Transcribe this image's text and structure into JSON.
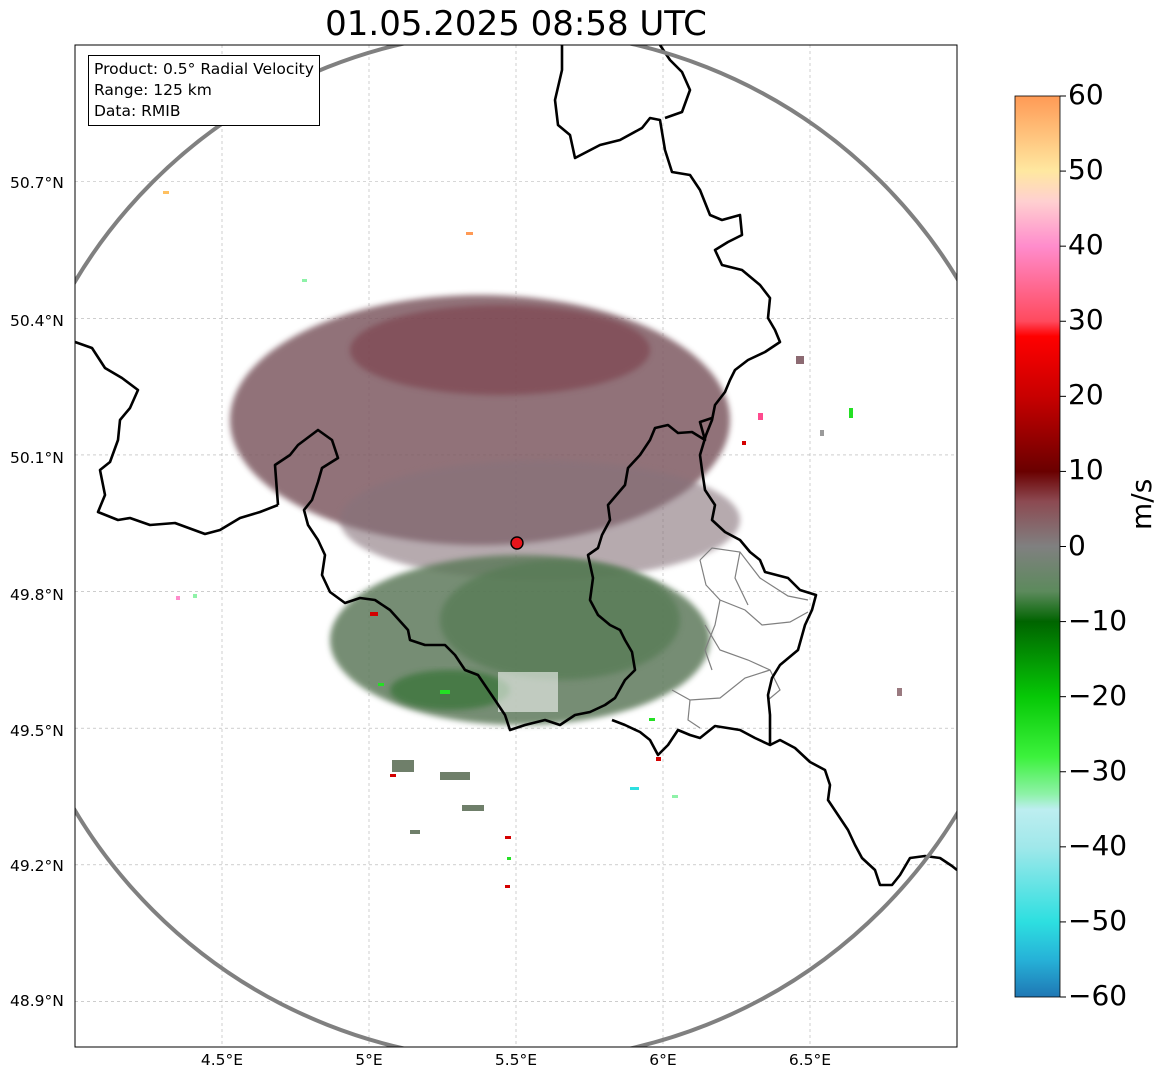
{
  "title": "01.05.2025 08:58 UTC",
  "info": {
    "product": "Product: 0.5° Radial Velocity",
    "range": "Range: 125 km",
    "data": "Data: RMIB"
  },
  "map": {
    "lon_range": [
      4.0,
      7.0
    ],
    "lat_range": [
      48.8,
      51.0
    ],
    "lon_ticks": [
      "4.5°E",
      "5°E",
      "5.5°E",
      "6°E",
      "6.5°E"
    ],
    "lat_ticks": [
      "50.7°N",
      "50.4°N",
      "50.1°N",
      "49.8°N",
      "49.5°N",
      "49.2°N",
      "48.9°N"
    ],
    "radar_site": {
      "lon": 5.51,
      "lat": 49.91
    },
    "range_km": 125,
    "range_ring_color": "#808080",
    "radar_marker_color": "#e8141b",
    "border_color": "#000000",
    "subregion_border_color": "#808080"
  },
  "colorbar": {
    "unit": "m/s",
    "min": -60,
    "max": 60,
    "ticks": [
      "60",
      "50",
      "40",
      "30",
      "20",
      "10",
      "0",
      "−10",
      "−20",
      "−30",
      "−40",
      "−50",
      "−60"
    ],
    "stops": [
      {
        "v": -60,
        "c": "#1f77b4"
      },
      {
        "v": -55,
        "c": "#26b2d8"
      },
      {
        "v": -50,
        "c": "#2ddfe0"
      },
      {
        "v": -40,
        "c": "#a0e8ea"
      },
      {
        "v": -35,
        "c": "#bdeef0"
      },
      {
        "v": -33,
        "c": "#8ef2a8"
      },
      {
        "v": -28,
        "c": "#3cf23c"
      },
      {
        "v": -20,
        "c": "#06c806"
      },
      {
        "v": -10,
        "c": "#006400"
      },
      {
        "v": -6,
        "c": "#5c8a5c"
      },
      {
        "v": 0,
        "c": "#808080"
      },
      {
        "v": 6,
        "c": "#8c4a52"
      },
      {
        "v": 10,
        "c": "#6a0000"
      },
      {
        "v": 20,
        "c": "#c80000"
      },
      {
        "v": 28,
        "c": "#ff0000"
      },
      {
        "v": 30,
        "c": "#ff4a5e"
      },
      {
        "v": 40,
        "c": "#ff8ccc"
      },
      {
        "v": 46,
        "c": "#ffd0d0"
      },
      {
        "v": 50,
        "c": "#ffe8a0"
      },
      {
        "v": 60,
        "c": "#ff9a55"
      }
    ]
  }
}
